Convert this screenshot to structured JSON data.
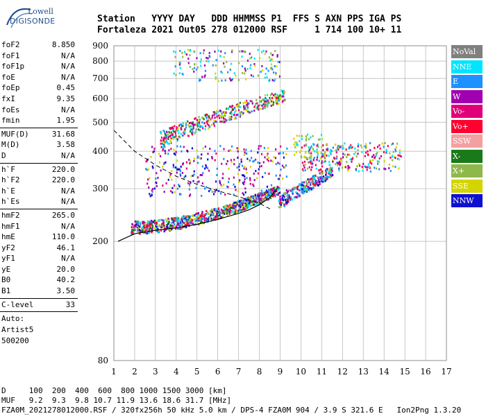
{
  "logo": {
    "line1": "Lowell",
    "line2": "DIGISONDE"
  },
  "header": {
    "row1": "Station   YYYY DAY   DDD HHMMSS P1  FFS S AXN PPS IGA PS",
    "row2": "Fortaleza 2021 Out05 278 012000 RSF     1 714 100 10+ 11"
  },
  "params": {
    "group1": [
      {
        "name": "foF2",
        "value": "8.850"
      },
      {
        "name": "foF1",
        "value": "N/A"
      },
      {
        "name": "foF1p",
        "value": "N/A"
      },
      {
        "name": "foE",
        "value": "N/A"
      },
      {
        "name": "foEp",
        "value": "0.45"
      },
      {
        "name": "fxI",
        "value": "9.35"
      },
      {
        "name": "foEs",
        "value": "N/A"
      },
      {
        "name": "fmin",
        "value": "1.95"
      }
    ],
    "group2": [
      {
        "name": "MUF(D)",
        "value": "31.68"
      },
      {
        "name": "M(D)",
        "value": "3.58"
      },
      {
        "name": "D",
        "value": "N/A"
      }
    ],
    "group3": [
      {
        "name": "h`F",
        "value": "220.0"
      },
      {
        "name": "h`F2",
        "value": "220.0"
      },
      {
        "name": "h`E",
        "value": "N/A"
      },
      {
        "name": "h`Es",
        "value": "N/A"
      }
    ],
    "group4": [
      {
        "name": "hmF2",
        "value": "265.0"
      },
      {
        "name": "hmF1",
        "value": "N/A"
      },
      {
        "name": "hmE",
        "value": "110.0"
      },
      {
        "name": "yF2",
        "value": "46.1"
      },
      {
        "name": "yF1",
        "value": "N/A"
      },
      {
        "name": "yE",
        "value": "20.0"
      },
      {
        "name": "B0",
        "value": "40.2"
      },
      {
        "name": "B1",
        "value": "3.50"
      }
    ],
    "group5": [
      {
        "name": "C-level",
        "value": "33"
      }
    ],
    "auto": [
      "Auto:",
      "Artist5",
      "500200"
    ]
  },
  "legend": [
    {
      "label": "NoVal",
      "color": "#808080"
    },
    {
      "label": "NNE",
      "color": "#00e5ff"
    },
    {
      "label": "E",
      "color": "#1e90ff"
    },
    {
      "label": "W",
      "color": "#a000b0"
    },
    {
      "label": "Vo-",
      "color": "#e0007a"
    },
    {
      "label": "Vo+",
      "color": "#ff0030"
    },
    {
      "label": "SSW",
      "color": "#f4a0a0"
    },
    {
      "label": "X-",
      "color": "#1a7a1a"
    },
    {
      "label": "X+",
      "color": "#8fb84a"
    },
    {
      "label": "SSE",
      "color": "#d4d400"
    },
    {
      "label": "NNW",
      "color": "#1010d0"
    }
  ],
  "bottom": {
    "line1": "D     100  200  400  600  800 1000 1500 3000 [km]",
    "line2": "MUF   9.2  9.3  9.8 10.7 11.9 13.6 18.6 31.7 [MHz]",
    "line3": "FZA0M_2021278012000.RSF / 320fx256h 50 kHz 5.0 km / DPS-4 FZA0M 904 / 3.9 S 321.6 E   Ion2Png 1.3.20"
  },
  "chart_data": {
    "type": "scatter",
    "title": "",
    "xlabel": "",
    "ylabel": "",
    "xlim": [
      1,
      17
    ],
    "ylim": [
      80,
      900
    ],
    "y_scale": "log",
    "x_ticks": [
      1,
      2,
      3,
      4,
      5,
      6,
      7,
      8,
      9,
      10,
      11,
      12,
      13,
      14,
      15,
      16,
      17
    ],
    "y_ticks": [
      80,
      200,
      300,
      400,
      500,
      600,
      700,
      800,
      900
    ],
    "grid": true,
    "legend_position": "right",
    "profile_curve": {
      "style": "solid",
      "x": [
        1.2,
        2,
        3,
        4,
        5,
        6,
        7,
        7.5,
        8,
        8.5,
        8.85
      ],
      "y": [
        200,
        212,
        218,
        222,
        228,
        237,
        248,
        255,
        265,
        280,
        300
      ]
    },
    "muf_curve": {
      "style": "dashed",
      "x": [
        1,
        2,
        3,
        4,
        5,
        6,
        7,
        8,
        8.6
      ],
      "y": [
        470,
        400,
        360,
        330,
        310,
        295,
        282,
        268,
        255
      ]
    },
    "clusters": [
      {
        "name": "F-trace",
        "x": [
          1.8,
          8.9
        ],
        "y": [
          220,
          295
        ],
        "colors": [
          "NNE",
          "E",
          "Vo+",
          "Vo-",
          "X-",
          "X+",
          "SSE",
          "W",
          "NNW"
        ]
      },
      {
        "name": "F-trace-ext",
        "x": [
          8.9,
          11.5
        ],
        "y": [
          270,
          345
        ],
        "colors": [
          "E",
          "NNW",
          "Vo+",
          "X+",
          "NNE",
          "W"
        ]
      },
      {
        "name": "spread-mid",
        "x": [
          2.5,
          9.3
        ],
        "y": [
          285,
          420
        ],
        "colors": [
          "W",
          "Vo-",
          "NNW",
          "SSE",
          "E"
        ]
      },
      {
        "name": "2nd-hop",
        "x": [
          3.2,
          9.2
        ],
        "y": [
          440,
          620
        ],
        "colors": [
          "X-",
          "X+",
          "Vo-",
          "Vo+",
          "E",
          "NNE",
          "SSE",
          "W"
        ]
      },
      {
        "name": "3rd-hop",
        "x": [
          3.8,
          9.0
        ],
        "y": [
          690,
          880
        ],
        "colors": [
          "NNE",
          "E",
          "SSE",
          "X+",
          "W"
        ]
      },
      {
        "name": "high-freq",
        "x": [
          10.0,
          14.8
        ],
        "y": [
          345,
          430
        ],
        "colors": [
          "NNE",
          "W",
          "Vo+",
          "Vo-",
          "E",
          "X+",
          "SSE"
        ]
      },
      {
        "name": "top-right",
        "x": [
          9.6,
          11.0
        ],
        "y": [
          380,
          460
        ],
        "colors": [
          "NNE",
          "SSE",
          "X+"
        ]
      }
    ]
  }
}
